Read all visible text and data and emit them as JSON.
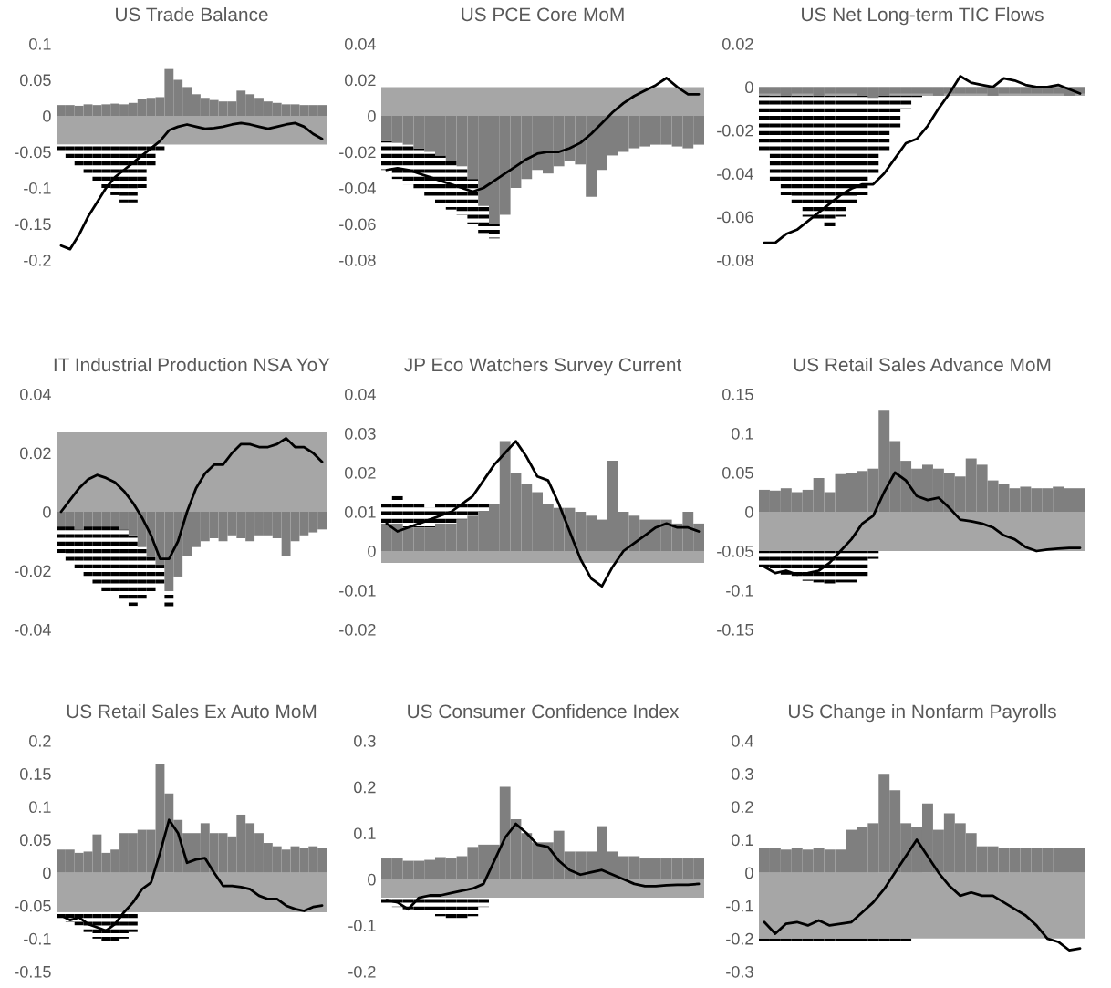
{
  "chart_data": [
    {
      "type": "bar",
      "title": "US Trade Balance",
      "categories": [
        null,
        null,
        null,
        null,
        null,
        null,
        null,
        null,
        null,
        null,
        null,
        null,
        null,
        null,
        null,
        null,
        null,
        null,
        null,
        null,
        null,
        null,
        null,
        null,
        null,
        null,
        null,
        null,
        null,
        null
      ],
      "ylim": [
        -0.2,
        0.1
      ],
      "yticks": [
        -0.2,
        -0.15,
        -0.1,
        -0.05,
        0,
        0.05,
        0.1
      ],
      "grid": false,
      "legend": false,
      "bands": [
        {
          "axis": "y",
          "from": -0.04,
          "to": 0,
          "color": "#a6a6a6"
        }
      ],
      "series": [
        {
          "color": "#000000",
          "line_style": "dashed",
          "base": [
            -0.04,
            -0.04,
            -0.04,
            -0.04,
            -0.04,
            -0.04,
            -0.04,
            -0.04,
            -0.04,
            -0.04,
            -0.04,
            -0.04,
            null,
            null,
            null,
            null,
            null,
            null,
            null,
            null,
            null,
            null,
            null,
            null,
            null,
            null,
            null,
            null,
            null,
            null
          ],
          "values": [
            -0.01,
            -0.02,
            -0.03,
            -0.04,
            -0.05,
            -0.06,
            -0.07,
            -0.08,
            -0.08,
            -0.06,
            -0.03,
            -0.01,
            null,
            null,
            null,
            null,
            null,
            null,
            null,
            null,
            null,
            null,
            null,
            null,
            null,
            null,
            null,
            null,
            null,
            null
          ]
        },
        {
          "type": "bar",
          "color": "#7f7f7f",
          "values": [
            0.015,
            0.015,
            0.014,
            0.016,
            0.015,
            0.016,
            0.017,
            0.016,
            0.018,
            0.024,
            0.025,
            0.026,
            0.065,
            0.05,
            0.04,
            0.03,
            0.025,
            0.022,
            0.02,
            0.02,
            0.035,
            0.03,
            0.025,
            0.02,
            0.018,
            0.016,
            0.016,
            0.015,
            0.015,
            0.015
          ]
        },
        {
          "type": "line",
          "color": "#000000",
          "values": [
            -0.18,
            -0.185,
            -0.165,
            -0.14,
            -0.12,
            -0.1,
            -0.085,
            -0.075,
            -0.065,
            -0.055,
            -0.045,
            -0.035,
            -0.02,
            -0.015,
            -0.012,
            -0.015,
            -0.018,
            -0.017,
            -0.015,
            -0.012,
            -0.01,
            -0.012,
            -0.015,
            -0.018,
            -0.015,
            -0.012,
            -0.01,
            -0.015,
            -0.025,
            -0.032
          ]
        }
      ]
    },
    {
      "type": "bar",
      "title": "US PCE Core MoM",
      "categories": [
        null,
        null,
        null,
        null,
        null,
        null,
        null,
        null,
        null,
        null,
        null,
        null,
        null,
        null,
        null,
        null,
        null,
        null,
        null,
        null,
        null,
        null,
        null,
        null,
        null,
        null,
        null,
        null,
        null,
        null
      ],
      "ylim": [
        -0.08,
        0.04
      ],
      "yticks": [
        -0.08,
        -0.06,
        -0.04,
        -0.02,
        0,
        0.02,
        0.04
      ],
      "grid": false,
      "legend": false,
      "bands": [
        {
          "axis": "y",
          "from": 0,
          "to": 0.016,
          "color": "#a6a6a6"
        }
      ],
      "series": [
        {
          "color": "#000000",
          "line_style": "dashed",
          "base": [
            -0.014,
            -0.015,
            -0.016,
            -0.018,
            -0.02,
            -0.022,
            -0.025,
            -0.028,
            -0.035,
            -0.05,
            -0.06,
            null,
            null,
            null,
            null,
            null,
            null,
            null,
            null,
            null,
            null,
            null,
            null,
            null,
            null,
            null,
            null,
            null,
            null,
            null
          ],
          "values": [
            -0.016,
            -0.02,
            -0.022,
            -0.024,
            -0.025,
            -0.028,
            -0.027,
            -0.027,
            -0.025,
            -0.015,
            -0.008,
            null,
            null,
            null,
            null,
            null,
            null,
            null,
            null,
            null,
            null,
            null,
            null,
            null,
            null,
            null,
            null,
            null,
            null,
            null
          ]
        },
        {
          "type": "bar",
          "color": "#7f7f7f",
          "values": [
            -0.014,
            -0.015,
            -0.016,
            -0.018,
            -0.02,
            -0.022,
            -0.025,
            -0.028,
            -0.035,
            -0.05,
            -0.06,
            -0.055,
            -0.04,
            -0.035,
            -0.03,
            -0.032,
            -0.028,
            -0.025,
            -0.027,
            -0.045,
            -0.03,
            -0.022,
            -0.02,
            -0.018,
            -0.017,
            -0.016,
            -0.016,
            -0.017,
            -0.018,
            -0.016
          ]
        },
        {
          "type": "line",
          "color": "#000000",
          "values": [
            -0.03,
            -0.029,
            -0.03,
            -0.032,
            -0.034,
            -0.036,
            -0.038,
            -0.04,
            -0.042,
            -0.04,
            -0.036,
            -0.032,
            -0.028,
            -0.024,
            -0.021,
            -0.02,
            -0.02,
            -0.018,
            -0.015,
            -0.01,
            -0.004,
            0.002,
            0.007,
            0.011,
            0.014,
            0.017,
            0.021,
            0.016,
            0.012,
            0.012
          ]
        }
      ]
    },
    {
      "type": "bar",
      "title": "US Net Long-term TIC Flows",
      "categories": [
        null,
        null,
        null,
        null,
        null,
        null,
        null,
        null,
        null,
        null,
        null,
        null,
        null,
        null,
        null,
        null,
        null,
        null,
        null,
        null,
        null,
        null,
        null,
        null,
        null,
        null,
        null,
        null,
        null,
        null
      ],
      "ylim": [
        -0.08,
        0.02
      ],
      "yticks": [
        -0.08,
        -0.06,
        -0.04,
        -0.02,
        0,
        0.02
      ],
      "grid": false,
      "legend": false,
      "bands": [
        {
          "axis": "y",
          "from": -0.004,
          "to": 0,
          "color": "#a6a6a6"
        }
      ],
      "series": [
        {
          "color": "#000000",
          "line_style": "dashed",
          "base": [
            -0.004,
            -0.004,
            -0.004,
            -0.004,
            -0.004,
            -0.004,
            -0.004,
            -0.004,
            -0.004,
            -0.004,
            -0.004,
            -0.004,
            -0.004,
            -0.004,
            -0.004,
            null,
            null,
            null,
            null,
            null,
            null,
            null,
            null,
            null,
            null,
            null,
            null,
            null,
            null,
            null
          ],
          "values": [
            -0.026,
            -0.041,
            -0.046,
            -0.051,
            -0.056,
            -0.058,
            -0.061,
            -0.056,
            -0.051,
            -0.046,
            -0.036,
            -0.026,
            -0.016,
            -0.006,
            -0.002,
            null,
            null,
            null,
            null,
            null,
            null,
            null,
            null,
            null,
            null,
            null,
            null,
            null,
            null,
            null
          ]
        },
        {
          "type": "bar",
          "color": "#7f7f7f",
          "values": [
            -0.003,
            -0.003,
            -0.004,
            -0.003,
            -0.003,
            -0.004,
            -0.003,
            -0.003,
            -0.003,
            -0.004,
            -0.005,
            -0.004,
            -0.003,
            -0.003,
            -0.003,
            -0.003,
            -0.004,
            -0.003,
            -0.003,
            -0.003,
            -0.003,
            -0.004,
            -0.003,
            -0.003,
            -0.003,
            -0.003,
            -0.003,
            -0.003,
            -0.004,
            -0.003
          ]
        },
        {
          "type": "line",
          "color": "#000000",
          "values": [
            -0.072,
            -0.072,
            -0.068,
            -0.066,
            -0.062,
            -0.058,
            -0.054,
            -0.05,
            -0.047,
            -0.045,
            -0.045,
            -0.04,
            -0.033,
            -0.026,
            -0.024,
            -0.018,
            -0.01,
            -0.003,
            0.005,
            0.002,
            0.001,
            0.0,
            0.004,
            0.003,
            0.001,
            0.0,
            0.0,
            0.001,
            -0.001,
            -0.003
          ]
        }
      ]
    },
    {
      "type": "bar",
      "title": "IT Industrial Production NSA YoY",
      "categories": [
        null,
        null,
        null,
        null,
        null,
        null,
        null,
        null,
        null,
        null,
        null,
        null,
        null,
        null,
        null,
        null,
        null,
        null,
        null,
        null,
        null,
        null,
        null,
        null,
        null,
        null,
        null,
        null,
        null,
        null
      ],
      "ylim": [
        -0.04,
        0.04
      ],
      "yticks": [
        -0.04,
        -0.02,
        0,
        0.02,
        0.04
      ],
      "grid": false,
      "legend": false,
      "bands": [
        {
          "axis": "y",
          "from": 0,
          "to": 0.027,
          "color": "#a6a6a6"
        }
      ],
      "series": [
        {
          "color": "#000000",
          "line_style": "dashed",
          "base": [
            -0.005,
            -0.005,
            -0.006,
            -0.005,
            -0.005,
            -0.005,
            -0.005,
            -0.006,
            -0.008,
            -0.012,
            -0.015,
            -0.018,
            -0.027,
            null,
            null,
            null,
            null,
            null,
            null,
            null,
            null,
            null,
            null,
            null,
            null,
            null,
            null,
            null,
            null,
            null
          ],
          "values": [
            -0.009,
            -0.012,
            -0.014,
            -0.017,
            -0.02,
            -0.022,
            -0.023,
            -0.024,
            -0.024,
            -0.018,
            -0.013,
            -0.007,
            -0.006,
            null,
            null,
            null,
            null,
            null,
            null,
            null,
            null,
            null,
            null,
            null,
            null,
            null,
            null,
            null,
            null,
            null
          ]
        },
        {
          "type": "bar",
          "color": "#7f7f7f",
          "values": [
            -0.005,
            -0.005,
            -0.006,
            -0.005,
            -0.005,
            -0.005,
            -0.005,
            -0.006,
            -0.008,
            -0.012,
            -0.015,
            -0.018,
            -0.027,
            -0.022,
            -0.015,
            -0.012,
            -0.01,
            -0.009,
            -0.01,
            -0.008,
            -0.009,
            -0.01,
            -0.008,
            -0.008,
            -0.009,
            -0.015,
            -0.01,
            -0.008,
            -0.007,
            -0.006
          ]
        },
        {
          "type": "line",
          "color": "#000000",
          "values": [
            0.0,
            0.004,
            0.008,
            0.011,
            0.0125,
            0.0115,
            0.01,
            0.007,
            0.003,
            -0.002,
            -0.008,
            -0.016,
            -0.016,
            -0.01,
            0.0,
            0.008,
            0.013,
            0.016,
            0.016,
            0.02,
            0.023,
            0.023,
            0.022,
            0.022,
            0.023,
            0.025,
            0.022,
            0.022,
            0.02,
            0.017
          ]
        }
      ]
    },
    {
      "type": "bar",
      "title": "JP Eco Watchers Survey Current",
      "categories": [
        null,
        null,
        null,
        null,
        null,
        null,
        null,
        null,
        null,
        null,
        null,
        null,
        null,
        null,
        null,
        null,
        null,
        null,
        null,
        null,
        null,
        null,
        null,
        null,
        null,
        null,
        null,
        null,
        null,
        null
      ],
      "ylim": [
        -0.02,
        0.04
      ],
      "yticks": [
        -0.02,
        -0.01,
        0,
        0.01,
        0.02,
        0.03,
        0.04
      ],
      "grid": false,
      "legend": false,
      "bands": [
        {
          "axis": "y",
          "from": -0.003,
          "to": 0,
          "color": "#a6a6a6"
        }
      ],
      "series": [
        {
          "color": "#000000",
          "line_style": "dashed",
          "base": [
            0.007,
            0.007,
            0.006,
            0.006,
            0.006,
            0.007,
            0.007,
            0.008,
            0.009,
            0.01,
            null,
            null,
            null,
            null,
            null,
            null,
            null,
            null,
            null,
            null,
            null,
            null,
            null,
            null,
            null,
            null,
            null,
            null,
            null,
            null
          ],
          "values": [
            0.005,
            0.007,
            0.006,
            0.006,
            0.005,
            0.005,
            0.005,
            0.004,
            0.003,
            0.002,
            null,
            null,
            null,
            null,
            null,
            null,
            null,
            null,
            null,
            null,
            null,
            null,
            null,
            null,
            null,
            null,
            null,
            null,
            null,
            null
          ]
        },
        {
          "type": "bar",
          "color": "#7f7f7f",
          "values": [
            0.007,
            0.007,
            0.006,
            0.006,
            0.006,
            0.007,
            0.007,
            0.008,
            0.009,
            0.01,
            0.012,
            0.028,
            0.02,
            0.017,
            0.015,
            0.012,
            0.011,
            0.011,
            0.01,
            0.009,
            0.008,
            0.023,
            0.01,
            0.009,
            0.008,
            0.008,
            0.008,
            0.007,
            0.01,
            0.007
          ]
        },
        {
          "type": "line",
          "color": "#000000",
          "values": [
            0.007,
            0.005,
            0.006,
            0.007,
            0.008,
            0.009,
            0.01,
            0.012,
            0.014,
            0.018,
            0.022,
            0.025,
            0.028,
            0.024,
            0.019,
            0.018,
            0.012,
            0.005,
            -0.002,
            -0.007,
            -0.009,
            -0.004,
            0.0,
            0.002,
            0.004,
            0.006,
            0.007,
            0.006,
            0.006,
            0.005
          ]
        }
      ]
    },
    {
      "type": "bar",
      "title": "US Retail Sales Advance MoM",
      "categories": [
        null,
        null,
        null,
        null,
        null,
        null,
        null,
        null,
        null,
        null,
        null,
        null,
        null,
        null,
        null,
        null,
        null,
        null,
        null,
        null,
        null,
        null,
        null,
        null,
        null,
        null,
        null,
        null,
        null,
        null
      ],
      "ylim": [
        -0.15,
        0.15
      ],
      "yticks": [
        -0.15,
        -0.1,
        -0.05,
        0,
        0.05,
        0.1,
        0.15
      ],
      "grid": false,
      "legend": false,
      "bands": [
        {
          "axis": "y",
          "from": -0.05,
          "to": 0,
          "color": "#a6a6a6"
        }
      ],
      "series": [
        {
          "color": "#000000",
          "line_style": "dashed",
          "base": [
            -0.05,
            -0.05,
            -0.05,
            -0.05,
            -0.05,
            -0.05,
            -0.05,
            -0.05,
            -0.05,
            -0.05,
            -0.05,
            null,
            null,
            null,
            null,
            null,
            null,
            null,
            null,
            null,
            null,
            null,
            null,
            null,
            null,
            null,
            null,
            null,
            null,
            null
          ],
          "values": [
            -0.02,
            -0.025,
            -0.03,
            -0.035,
            -0.038,
            -0.04,
            -0.042,
            -0.04,
            -0.04,
            -0.035,
            -0.01,
            null,
            null,
            null,
            null,
            null,
            null,
            null,
            null,
            null,
            null,
            null,
            null,
            null,
            null,
            null,
            null,
            null,
            null,
            null
          ]
        },
        {
          "type": "bar",
          "color": "#7f7f7f",
          "values": [
            0.028,
            0.027,
            0.03,
            0.025,
            0.028,
            0.043,
            0.025,
            0.048,
            0.05,
            0.052,
            0.055,
            0.13,
            0.09,
            0.065,
            0.055,
            0.06,
            0.055,
            0.05,
            0.045,
            0.068,
            0.06,
            0.04,
            0.035,
            0.03,
            0.032,
            0.03,
            0.03,
            0.032,
            0.03,
            0.03
          ]
        },
        {
          "type": "line",
          "color": "#000000",
          "values": [
            -0.07,
            -0.078,
            -0.075,
            -0.08,
            -0.078,
            -0.075,
            -0.065,
            -0.05,
            -0.035,
            -0.015,
            -0.005,
            0.025,
            0.05,
            0.04,
            0.02,
            0.015,
            0.018,
            0.005,
            -0.01,
            -0.012,
            -0.015,
            -0.02,
            -0.03,
            -0.035,
            -0.045,
            -0.05,
            -0.048,
            -0.047,
            -0.046,
            -0.046
          ]
        }
      ]
    },
    {
      "type": "bar",
      "title": "US Retail Sales Ex Auto MoM",
      "categories": [
        null,
        null,
        null,
        null,
        null,
        null,
        null,
        null,
        null,
        null,
        null,
        null,
        null,
        null,
        null,
        null,
        null,
        null,
        null,
        null,
        null,
        null,
        null,
        null,
        null,
        null,
        null,
        null,
        null,
        null
      ],
      "ylim": [
        -0.15,
        0.2
      ],
      "yticks": [
        -0.15,
        -0.1,
        -0.05,
        0,
        0.05,
        0.1,
        0.15,
        0.2
      ],
      "grid": false,
      "legend": false,
      "bands": [
        {
          "axis": "y",
          "from": -0.06,
          "to": 0,
          "color": "#a6a6a6"
        }
      ],
      "series": [
        {
          "color": "#000000",
          "line_style": "dashed",
          "base": [
            -0.06,
            -0.06,
            -0.06,
            -0.06,
            -0.06,
            -0.06,
            -0.06,
            -0.06,
            -0.06,
            null,
            null,
            null,
            null,
            null,
            null,
            null,
            null,
            null,
            null,
            null,
            null,
            null,
            null,
            null,
            null,
            null,
            null,
            null,
            null,
            null
          ],
          "values": [
            -0.01,
            -0.015,
            -0.02,
            -0.03,
            -0.04,
            -0.045,
            -0.045,
            -0.04,
            -0.03,
            null,
            null,
            null,
            null,
            null,
            null,
            null,
            null,
            null,
            null,
            null,
            null,
            null,
            null,
            null,
            null,
            null,
            null,
            null,
            null,
            null
          ]
        },
        {
          "type": "bar",
          "color": "#7f7f7f",
          "values": [
            0.035,
            0.035,
            0.03,
            0.032,
            0.058,
            0.03,
            0.035,
            0.06,
            0.06,
            0.065,
            0.065,
            0.165,
            0.12,
            0.08,
            0.06,
            0.06,
            0.075,
            0.06,
            0.06,
            0.055,
            0.088,
            0.075,
            0.06,
            0.045,
            0.04,
            0.035,
            0.04,
            0.038,
            0.04,
            0.038
          ]
        },
        {
          "type": "line",
          "color": "#000000",
          "values": [
            -0.065,
            -0.072,
            -0.068,
            -0.078,
            -0.083,
            -0.088,
            -0.078,
            -0.06,
            -0.045,
            -0.025,
            -0.015,
            0.03,
            0.08,
            0.06,
            0.015,
            0.02,
            0.022,
            0.0,
            -0.02,
            -0.02,
            -0.022,
            -0.025,
            -0.035,
            -0.04,
            -0.04,
            -0.05,
            -0.055,
            -0.058,
            -0.052,
            -0.05
          ]
        }
      ]
    },
    {
      "type": "bar",
      "title": "US Consumer Confidence Index",
      "categories": [
        null,
        null,
        null,
        null,
        null,
        null,
        null,
        null,
        null,
        null,
        null,
        null,
        null,
        null,
        null,
        null,
        null,
        null,
        null,
        null,
        null,
        null,
        null,
        null,
        null,
        null,
        null,
        null,
        null,
        null
      ],
      "ylim": [
        -0.2,
        0.3
      ],
      "yticks": [
        -0.2,
        -0.1,
        0,
        0.1,
        0.2,
        0.3
      ],
      "grid": false,
      "legend": false,
      "bands": [
        {
          "axis": "y",
          "from": -0.04,
          "to": 0,
          "color": "#a6a6a6"
        }
      ],
      "series": [
        {
          "color": "#000000",
          "line_style": "dashed",
          "base": [
            -0.04,
            -0.04,
            -0.04,
            -0.04,
            -0.04,
            -0.04,
            -0.04,
            -0.04,
            -0.04,
            -0.04,
            null,
            null,
            null,
            null,
            null,
            null,
            null,
            null,
            null,
            null,
            null,
            null,
            null,
            null,
            null,
            null,
            null,
            null,
            null,
            null
          ],
          "values": [
            -0.015,
            -0.02,
            -0.025,
            -0.03,
            -0.035,
            -0.04,
            -0.045,
            -0.045,
            -0.04,
            -0.02,
            null,
            null,
            null,
            null,
            null,
            null,
            null,
            null,
            null,
            null,
            null,
            null,
            null,
            null,
            null,
            null,
            null,
            null,
            null,
            null
          ]
        },
        {
          "type": "bar",
          "color": "#7f7f7f",
          "values": [
            0.045,
            0.045,
            0.04,
            0.04,
            0.042,
            0.048,
            0.045,
            0.05,
            0.07,
            0.075,
            0.075,
            0.2,
            0.13,
            0.1,
            0.08,
            0.08,
            0.105,
            0.06,
            0.06,
            0.06,
            0.115,
            0.06,
            0.05,
            0.05,
            0.045,
            0.045,
            0.045,
            0.045,
            0.045,
            0.045
          ]
        },
        {
          "type": "line",
          "color": "#000000",
          "values": [
            -0.045,
            -0.05,
            -0.065,
            -0.04,
            -0.035,
            -0.035,
            -0.03,
            -0.025,
            -0.02,
            -0.01,
            0.04,
            0.09,
            0.12,
            0.1,
            0.075,
            0.07,
            0.04,
            0.02,
            0.01,
            0.015,
            0.02,
            0.01,
            0.0,
            -0.01,
            -0.015,
            -0.015,
            -0.013,
            -0.012,
            -0.012,
            -0.01
          ]
        }
      ]
    },
    {
      "type": "bar",
      "title": "US Change in Nonfarm Payrolls",
      "categories": [
        null,
        null,
        null,
        null,
        null,
        null,
        null,
        null,
        null,
        null,
        null,
        null,
        null,
        null,
        null,
        null,
        null,
        null,
        null,
        null,
        null,
        null,
        null,
        null,
        null,
        null,
        null,
        null,
        null,
        null
      ],
      "ylim": [
        -0.3,
        0.4
      ],
      "yticks": [
        -0.3,
        -0.2,
        -0.1,
        0,
        0.1,
        0.2,
        0.3,
        0.4
      ],
      "grid": false,
      "legend": false,
      "bands": [
        {
          "axis": "y",
          "from": -0.2,
          "to": 0,
          "color": "#a6a6a6"
        }
      ],
      "series": [
        {
          "color": "#000000",
          "line_style": "dashed",
          "base": [
            -0.2,
            -0.2,
            -0.2,
            -0.2,
            -0.2,
            -0.2,
            -0.2,
            -0.2,
            -0.2,
            -0.2,
            -0.2,
            -0.2,
            -0.2,
            -0.2,
            null,
            null,
            null,
            null,
            null,
            null,
            null,
            null,
            null,
            null,
            null,
            null,
            null,
            null,
            null,
            null
          ],
          "values": [
            -0.015,
            -0.015,
            -0.015,
            -0.015,
            -0.015,
            -0.015,
            -0.015,
            -0.015,
            -0.015,
            -0.015,
            -0.015,
            -0.015,
            -0.015,
            -0.015,
            null,
            null,
            null,
            null,
            null,
            null,
            null,
            null,
            null,
            null,
            null,
            null,
            null,
            null,
            null,
            null
          ]
        },
        {
          "type": "bar",
          "color": "#7f7f7f",
          "values": [
            0.075,
            0.075,
            0.07,
            0.075,
            0.07,
            0.075,
            0.07,
            0.07,
            0.13,
            0.14,
            0.15,
            0.3,
            0.25,
            0.15,
            0.14,
            0.21,
            0.13,
            0.18,
            0.15,
            0.12,
            0.08,
            0.08,
            0.075,
            0.075,
            0.075,
            0.075,
            0.075,
            0.075,
            0.075,
            0.075
          ]
        },
        {
          "type": "line",
          "color": "#000000",
          "values": [
            -0.15,
            -0.185,
            -0.155,
            -0.15,
            -0.16,
            -0.145,
            -0.16,
            -0.155,
            -0.15,
            -0.12,
            -0.09,
            -0.05,
            0.0,
            0.05,
            0.1,
            0.05,
            0.0,
            -0.04,
            -0.07,
            -0.06,
            -0.07,
            -0.07,
            -0.09,
            -0.11,
            -0.13,
            -0.16,
            -0.2,
            -0.21,
            -0.235,
            -0.23
          ]
        }
      ]
    }
  ]
}
